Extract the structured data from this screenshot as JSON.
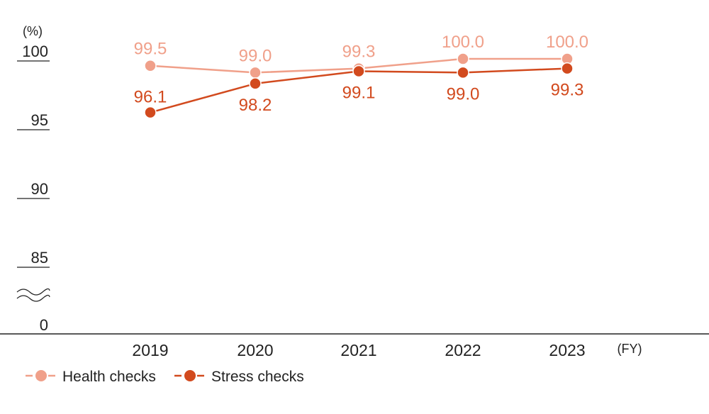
{
  "chart_data": {
    "type": "line",
    "y_unit_label": "(%)",
    "x_unit_label": "(FY)",
    "categories": [
      "2019",
      "2020",
      "2021",
      "2022",
      "2023"
    ],
    "y_ticks": [
      "100",
      "95",
      "90",
      "85",
      "0"
    ],
    "axis_break": true,
    "ylim": [
      85,
      100
    ],
    "series": [
      {
        "name": "Health checks",
        "values": [
          99.5,
          99.0,
          99.3,
          100.0,
          100.0
        ],
        "labels": [
          "99.5",
          "99.0",
          "99.3",
          "100.0",
          "100.0"
        ],
        "color": "#F0A08A"
      },
      {
        "name": "Stress checks",
        "values": [
          96.1,
          98.2,
          99.1,
          99.0,
          99.3
        ],
        "labels": [
          "96.1",
          "98.2",
          "99.1",
          "99.0",
          "99.3"
        ],
        "color": "#D24A1E"
      }
    ],
    "legend": "bottom-left",
    "grid": false
  }
}
